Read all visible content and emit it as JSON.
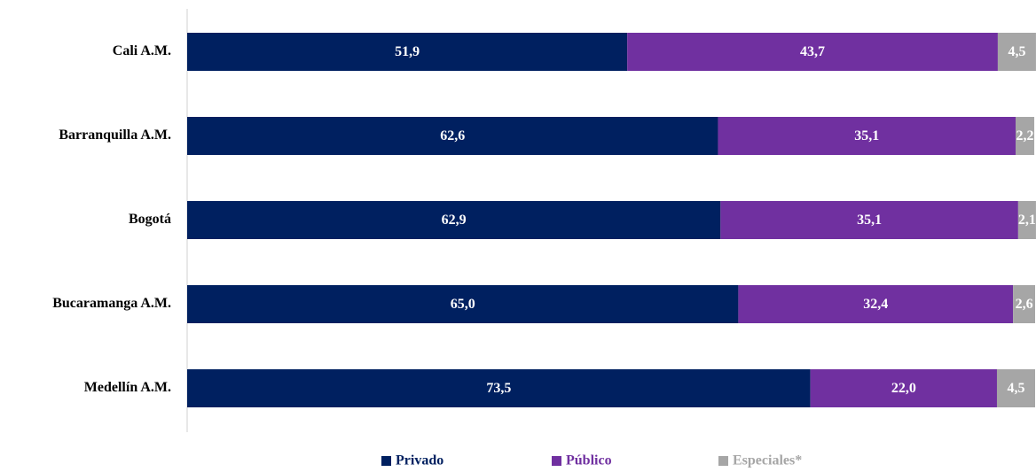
{
  "chart_data": {
    "type": "stacked-barh",
    "categories": [
      "Cali A.M.",
      "Barranquilla A.M.",
      "Bogotá",
      "Bucaramanga A.M.",
      "Medellín A.M."
    ],
    "series": [
      {
        "name": "Privado",
        "color": "#002060",
        "values": [
          51.9,
          62.6,
          62.9,
          65.0,
          73.5
        ],
        "value_labels": [
          "51,9",
          "62,6",
          "62,9",
          "65,0",
          "73,5"
        ]
      },
      {
        "name": "Público",
        "color": "#7030a0",
        "values": [
          43.7,
          35.1,
          35.1,
          32.4,
          22.0
        ],
        "value_labels": [
          "43,7",
          "35,1",
          "35,1",
          "32,4",
          "22,0"
        ]
      },
      {
        "name": "Especiales*",
        "color": "#a6a6a6",
        "values": [
          4.5,
          2.2,
          2.1,
          2.6,
          4.5
        ],
        "value_labels": [
          "4,5",
          "2,2",
          "2,1",
          "2,6",
          "4,5"
        ]
      }
    ],
    "xlim": [
      0,
      100
    ],
    "legend": "bottom"
  }
}
